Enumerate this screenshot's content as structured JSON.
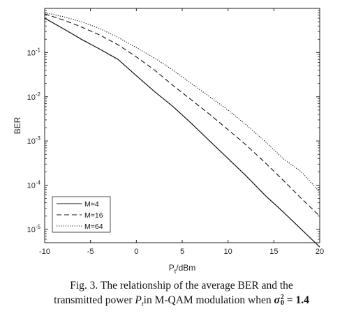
{
  "chart_data": {
    "type": "line",
    "xlabel": "P",
    "xlabel_sub": "t",
    "xlabel_unit": "/dBm",
    "ylabel": "BER",
    "xlim": [
      -10,
      20
    ],
    "ylim": [
      5e-06,
      1
    ],
    "yscale": "log",
    "grid": false,
    "legend_position": "bottom-left",
    "x_ticks": [
      -10,
      -5,
      0,
      5,
      10,
      15,
      20
    ],
    "x_tick_labels": [
      "-10",
      "-5",
      "0",
      "5",
      "10",
      "15",
      "20"
    ],
    "y_ticks": [
      0.1,
      0.01,
      0.001,
      0.0001,
      1e-05
    ],
    "y_tick_bases": [
      "10",
      "10",
      "10",
      "10",
      "10"
    ],
    "y_tick_exponents": [
      "-1",
      "-2",
      "-3",
      "-4",
      "-5"
    ],
    "series": [
      {
        "name": "M=4",
        "style": "solid",
        "x": [
          -10,
          -8,
          -6,
          -4,
          -2,
          0,
          2,
          4,
          6,
          8,
          10,
          12,
          14,
          16,
          18,
          20
        ],
        "y": [
          0.6,
          0.35,
          0.2,
          0.12,
          0.07,
          0.03,
          0.013,
          0.006,
          0.0025,
          0.001,
          0.0004,
          0.00016,
          6e-05,
          2.5e-05,
          1e-05,
          4e-06
        ]
      },
      {
        "name": "M=16",
        "style": "dashed",
        "x": [
          -10,
          -8,
          -6,
          -4,
          -2,
          0,
          2,
          4,
          6,
          8,
          10,
          12,
          14,
          16,
          18,
          20
        ],
        "y": [
          0.75,
          0.55,
          0.38,
          0.25,
          0.15,
          0.08,
          0.04,
          0.018,
          0.0085,
          0.004,
          0.0018,
          0.0008,
          0.00033,
          0.00013,
          5e-05,
          2e-05
        ]
      },
      {
        "name": "M=64",
        "style": "dotted",
        "x": [
          -10,
          -8,
          -6,
          -4,
          -2,
          0,
          2,
          4,
          6,
          8,
          10,
          12,
          14,
          16,
          18,
          20
        ],
        "y": [
          0.8,
          0.65,
          0.5,
          0.35,
          0.22,
          0.13,
          0.075,
          0.04,
          0.02,
          0.01,
          0.005,
          0.0023,
          0.001,
          0.0004,
          0.0002,
          7e-05
        ]
      }
    ]
  },
  "caption": {
    "line1": "Fig. 3. The relationship of the average BER and the",
    "line2_prefix": "transmitted power ",
    "line2_symbol": "P",
    "line2_symbol_sub": "t",
    "line2_middle": "in M-QAM modulation when ",
    "line2_sigma": "σ",
    "line2_sigma_sup": "2",
    "line2_sigma_sub": "0",
    "line2_equals": " = ",
    "line2_value": "1.4"
  },
  "colors": {
    "series": "#111111",
    "axes": "#222222"
  }
}
